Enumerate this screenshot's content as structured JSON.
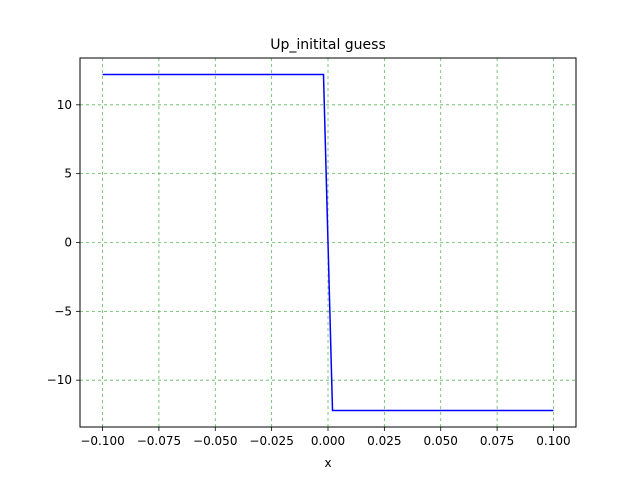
{
  "chart_data": {
    "type": "line",
    "title": "Up_initital guess",
    "xlabel": "x",
    "ylabel": "",
    "xlim": [
      -0.11,
      0.11
    ],
    "ylim": [
      -13.4,
      13.4
    ],
    "xticks": [
      -0.1,
      -0.075,
      -0.05,
      -0.025,
      0.0,
      0.025,
      0.05,
      0.075,
      0.1
    ],
    "xtick_labels": [
      "−0.100",
      "−0.075",
      "−0.050",
      "−0.025",
      "0.000",
      "0.025",
      "0.050",
      "0.075",
      "0.100"
    ],
    "yticks": [
      10,
      5,
      0,
      -5,
      -10
    ],
    "ytick_labels": [
      "10",
      "5",
      "0",
      "−5",
      "−10"
    ],
    "grid": true,
    "colors": {
      "line": "#0000ff",
      "grid": "#5cb85c",
      "axes": "#000000"
    },
    "series": [
      {
        "x": [
          -0.1,
          -0.002,
          0.002,
          0.1
        ],
        "y": [
          12.2,
          12.2,
          -12.2,
          -12.2
        ]
      }
    ]
  }
}
